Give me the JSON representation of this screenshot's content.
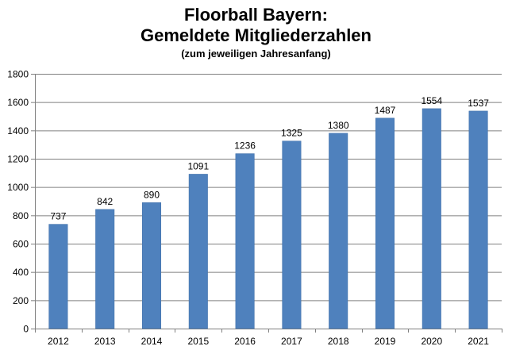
{
  "title_line1": "Floorball Bayern:",
  "title_line2": "Gemeldete Mitgliederzahlen",
  "subtitle": "(zum jeweiligen Jahresanfang)",
  "colors": {
    "bar": "#4F81BD",
    "bar_edge": "#3F6FA8",
    "grid": "#808080",
    "axis": "#808080"
  },
  "chart_data": {
    "type": "bar",
    "title": "Floorball Bayern: Gemeldete Mitgliederzahlen",
    "subtitle": "(zum jeweiligen Jahresanfang)",
    "categories": [
      "2012",
      "2013",
      "2014",
      "2015",
      "2016",
      "2017",
      "2018",
      "2019",
      "2020",
      "2021"
    ],
    "values": [
      737,
      842,
      890,
      1091,
      1236,
      1325,
      1380,
      1487,
      1554,
      1537
    ],
    "data_labels": [
      "737",
      "842",
      "890",
      "1091",
      "1236",
      "1325",
      "1380",
      "1487",
      "1554",
      "1537"
    ],
    "y_ticks": [
      0,
      200,
      400,
      600,
      800,
      1000,
      1200,
      1400,
      1600,
      1800
    ],
    "ylim": [
      0,
      1800
    ],
    "grid": true,
    "legend": "none"
  }
}
